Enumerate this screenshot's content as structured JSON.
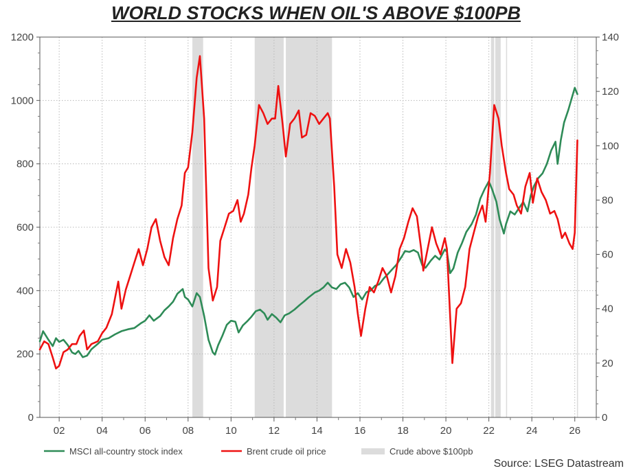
{
  "title": "WORLD STOCKS WHEN OIL'S ABOVE $100PB",
  "source": "Source: LSEG Datastream",
  "chart_data": {
    "type": "line",
    "x_range": [
      2001.1,
      2027.0
    ],
    "x_ticks": [
      2002,
      2004,
      2006,
      2008,
      2010,
      2012,
      2014,
      2016,
      2018,
      2020,
      2022,
      2024,
      2026
    ],
    "x_tick_labels": [
      "02",
      "04",
      "06",
      "08",
      "10",
      "12",
      "14",
      "16",
      "18",
      "20",
      "22",
      "24",
      "26"
    ],
    "y_left": {
      "range": [
        0,
        1200
      ],
      "ticks": [
        0,
        200,
        400,
        600,
        800,
        1000,
        1200
      ],
      "labels": [
        "0",
        "200",
        "400",
        "600",
        "800",
        "1000",
        "1200"
      ]
    },
    "y_right": {
      "range": [
        0,
        140
      ],
      "ticks": [
        0,
        20,
        40,
        60,
        80,
        100,
        120,
        140
      ],
      "labels": [
        "0",
        "20",
        "40",
        "60",
        "80",
        "100",
        "120",
        "140"
      ]
    },
    "grid": true,
    "legend_position": "bottom",
    "shaded_periods": {
      "name": "Crude above $100pb",
      "color": "#dcdcdc",
      "ranges": [
        [
          2008.2,
          2008.7
        ],
        [
          2011.1,
          2012.45
        ],
        [
          2012.55,
          2014.7
        ],
        [
          2022.1,
          2022.25
        ],
        [
          2022.3,
          2022.55
        ],
        [
          2022.8,
          2022.85
        ],
        [
          2026.1,
          2026.15
        ]
      ]
    },
    "series": [
      {
        "name": "MSCI all-country stock index",
        "axis": "left",
        "color": "#2e8b57",
        "points": [
          [
            2001.1,
            240
          ],
          [
            2001.25,
            272
          ],
          [
            2001.5,
            245
          ],
          [
            2001.7,
            225
          ],
          [
            2001.85,
            250
          ],
          [
            2002.0,
            238
          ],
          [
            2002.2,
            245
          ],
          [
            2002.4,
            228
          ],
          [
            2002.6,
            205
          ],
          [
            2002.75,
            200
          ],
          [
            2002.9,
            210
          ],
          [
            2003.1,
            190
          ],
          [
            2003.3,
            195
          ],
          [
            2003.5,
            215
          ],
          [
            2003.8,
            232
          ],
          [
            2004.0,
            245
          ],
          [
            2004.3,
            250
          ],
          [
            2004.6,
            262
          ],
          [
            2004.9,
            272
          ],
          [
            2005.2,
            278
          ],
          [
            2005.5,
            282
          ],
          [
            2005.8,
            297
          ],
          [
            2006.0,
            305
          ],
          [
            2006.2,
            322
          ],
          [
            2006.4,
            305
          ],
          [
            2006.7,
            320
          ],
          [
            2006.9,
            338
          ],
          [
            2007.1,
            350
          ],
          [
            2007.3,
            365
          ],
          [
            2007.5,
            390
          ],
          [
            2007.75,
            405
          ],
          [
            2007.85,
            380
          ],
          [
            2008.0,
            372
          ],
          [
            2008.2,
            350
          ],
          [
            2008.4,
            392
          ],
          [
            2008.55,
            380
          ],
          [
            2008.75,
            320
          ],
          [
            2008.95,
            245
          ],
          [
            2009.15,
            205
          ],
          [
            2009.25,
            198
          ],
          [
            2009.4,
            228
          ],
          [
            2009.6,
            258
          ],
          [
            2009.8,
            292
          ],
          [
            2010.0,
            305
          ],
          [
            2010.2,
            302
          ],
          [
            2010.35,
            268
          ],
          [
            2010.55,
            290
          ],
          [
            2010.75,
            303
          ],
          [
            2010.95,
            318
          ],
          [
            2011.15,
            335
          ],
          [
            2011.35,
            340
          ],
          [
            2011.55,
            328
          ],
          [
            2011.7,
            308
          ],
          [
            2011.9,
            326
          ],
          [
            2012.1,
            315
          ],
          [
            2012.3,
            300
          ],
          [
            2012.5,
            322
          ],
          [
            2012.7,
            328
          ],
          [
            2012.95,
            340
          ],
          [
            2013.2,
            355
          ],
          [
            2013.4,
            366
          ],
          [
            2013.6,
            378
          ],
          [
            2013.9,
            394
          ],
          [
            2014.1,
            400
          ],
          [
            2014.3,
            410
          ],
          [
            2014.5,
            425
          ],
          [
            2014.7,
            410
          ],
          [
            2014.9,
            405
          ],
          [
            2015.1,
            420
          ],
          [
            2015.3,
            425
          ],
          [
            2015.5,
            410
          ],
          [
            2015.7,
            380
          ],
          [
            2015.9,
            392
          ],
          [
            2016.1,
            372
          ],
          [
            2016.3,
            395
          ],
          [
            2016.5,
            400
          ],
          [
            2016.7,
            415
          ],
          [
            2016.9,
            420
          ],
          [
            2017.1,
            438
          ],
          [
            2017.3,
            452
          ],
          [
            2017.5,
            467
          ],
          [
            2017.7,
            482
          ],
          [
            2017.95,
            508
          ],
          [
            2018.1,
            525
          ],
          [
            2018.3,
            522
          ],
          [
            2018.5,
            528
          ],
          [
            2018.7,
            520
          ],
          [
            2018.9,
            480
          ],
          [
            2019.05,
            472
          ],
          [
            2019.3,
            495
          ],
          [
            2019.5,
            510
          ],
          [
            2019.7,
            498
          ],
          [
            2019.95,
            530
          ],
          [
            2020.05,
            522
          ],
          [
            2020.2,
            455
          ],
          [
            2020.35,
            470
          ],
          [
            2020.55,
            520
          ],
          [
            2020.75,
            550
          ],
          [
            2020.95,
            585
          ],
          [
            2021.2,
            610
          ],
          [
            2021.4,
            640
          ],
          [
            2021.6,
            690
          ],
          [
            2021.8,
            720
          ],
          [
            2022.0,
            745
          ],
          [
            2022.15,
            720
          ],
          [
            2022.35,
            680
          ],
          [
            2022.5,
            625
          ],
          [
            2022.7,
            580
          ],
          [
            2022.8,
            610
          ],
          [
            2023.0,
            650
          ],
          [
            2023.2,
            640
          ],
          [
            2023.45,
            665
          ],
          [
            2023.6,
            680
          ],
          [
            2023.8,
            650
          ],
          [
            2023.95,
            700
          ],
          [
            2024.1,
            730
          ],
          [
            2024.3,
            755
          ],
          [
            2024.5,
            770
          ],
          [
            2024.7,
            800
          ],
          [
            2024.9,
            842
          ],
          [
            2025.1,
            870
          ],
          [
            2025.2,
            800
          ],
          [
            2025.35,
            875
          ],
          [
            2025.5,
            930
          ],
          [
            2025.7,
            970
          ],
          [
            2025.85,
            1005
          ],
          [
            2026.0,
            1040
          ],
          [
            2026.12,
            1020
          ]
        ]
      },
      {
        "name": "Brent crude oil price",
        "axis": "right",
        "color": "#ee1111",
        "points": [
          [
            2001.1,
            25
          ],
          [
            2001.3,
            28
          ],
          [
            2001.5,
            27
          ],
          [
            2001.7,
            22
          ],
          [
            2001.85,
            18
          ],
          [
            2002.0,
            19
          ],
          [
            2002.2,
            24
          ],
          [
            2002.4,
            25
          ],
          [
            2002.6,
            27
          ],
          [
            2002.8,
            27
          ],
          [
            2002.95,
            30
          ],
          [
            2003.15,
            32
          ],
          [
            2003.3,
            25
          ],
          [
            2003.5,
            27
          ],
          [
            2003.8,
            28
          ],
          [
            2004.0,
            31
          ],
          [
            2004.2,
            33
          ],
          [
            2004.45,
            38
          ],
          [
            2004.6,
            44
          ],
          [
            2004.75,
            50
          ],
          [
            2004.9,
            40
          ],
          [
            2005.1,
            47
          ],
          [
            2005.3,
            52
          ],
          [
            2005.5,
            57
          ],
          [
            2005.7,
            62
          ],
          [
            2005.9,
            56
          ],
          [
            2006.1,
            62
          ],
          [
            2006.3,
            70
          ],
          [
            2006.5,
            73
          ],
          [
            2006.7,
            65
          ],
          [
            2006.9,
            59
          ],
          [
            2007.1,
            56
          ],
          [
            2007.3,
            66
          ],
          [
            2007.5,
            73
          ],
          [
            2007.7,
            78
          ],
          [
            2007.85,
            90
          ],
          [
            2008.0,
            92
          ],
          [
            2008.2,
            105
          ],
          [
            2008.4,
            125
          ],
          [
            2008.55,
            133
          ],
          [
            2008.75,
            110
          ],
          [
            2008.95,
            55
          ],
          [
            2009.15,
            43
          ],
          [
            2009.35,
            48
          ],
          [
            2009.5,
            65
          ],
          [
            2009.7,
            70
          ],
          [
            2009.9,
            75
          ],
          [
            2010.1,
            76
          ],
          [
            2010.3,
            80
          ],
          [
            2010.45,
            72
          ],
          [
            2010.6,
            75
          ],
          [
            2010.8,
            82
          ],
          [
            2010.95,
            92
          ],
          [
            2011.1,
            100
          ],
          [
            2011.3,
            115
          ],
          [
            2011.5,
            112
          ],
          [
            2011.7,
            108
          ],
          [
            2011.9,
            110
          ],
          [
            2012.05,
            110
          ],
          [
            2012.2,
            122
          ],
          [
            2012.4,
            108
          ],
          [
            2012.55,
            96
          ],
          [
            2012.75,
            108
          ],
          [
            2012.95,
            110
          ],
          [
            2013.15,
            113
          ],
          [
            2013.3,
            103
          ],
          [
            2013.5,
            104
          ],
          [
            2013.7,
            112
          ],
          [
            2013.9,
            111
          ],
          [
            2014.1,
            108
          ],
          [
            2014.3,
            110
          ],
          [
            2014.5,
            112
          ],
          [
            2014.6,
            110
          ],
          [
            2014.8,
            85
          ],
          [
            2014.95,
            60
          ],
          [
            2015.15,
            55
          ],
          [
            2015.35,
            62
          ],
          [
            2015.55,
            57
          ],
          [
            2015.75,
            48
          ],
          [
            2015.9,
            38
          ],
          [
            2016.05,
            30
          ],
          [
            2016.25,
            40
          ],
          [
            2016.45,
            48
          ],
          [
            2016.65,
            46
          ],
          [
            2016.85,
            50
          ],
          [
            2017.05,
            55
          ],
          [
            2017.25,
            52
          ],
          [
            2017.45,
            46
          ],
          [
            2017.65,
            52
          ],
          [
            2017.85,
            62
          ],
          [
            2018.05,
            66
          ],
          [
            2018.25,
            72
          ],
          [
            2018.45,
            77
          ],
          [
            2018.65,
            74
          ],
          [
            2018.85,
            62
          ],
          [
            2018.95,
            54
          ],
          [
            2019.15,
            62
          ],
          [
            2019.35,
            70
          ],
          [
            2019.55,
            64
          ],
          [
            2019.75,
            60
          ],
          [
            2019.95,
            66
          ],
          [
            2020.05,
            62
          ],
          [
            2020.15,
            45
          ],
          [
            2020.3,
            20
          ],
          [
            2020.5,
            40
          ],
          [
            2020.7,
            42
          ],
          [
            2020.9,
            48
          ],
          [
            2021.1,
            62
          ],
          [
            2021.3,
            68
          ],
          [
            2021.5,
            74
          ],
          [
            2021.7,
            78
          ],
          [
            2021.85,
            72
          ],
          [
            2022.05,
            90
          ],
          [
            2022.25,
            115
          ],
          [
            2022.45,
            110
          ],
          [
            2022.6,
            100
          ],
          [
            2022.8,
            90
          ],
          [
            2022.95,
            84
          ],
          [
            2023.15,
            82
          ],
          [
            2023.3,
            78
          ],
          [
            2023.5,
            75
          ],
          [
            2023.7,
            85
          ],
          [
            2023.9,
            90
          ],
          [
            2024.05,
            79
          ],
          [
            2024.25,
            88
          ],
          [
            2024.45,
            83
          ],
          [
            2024.65,
            80
          ],
          [
            2024.85,
            75
          ],
          [
            2025.05,
            76
          ],
          [
            2025.2,
            73
          ],
          [
            2025.4,
            66
          ],
          [
            2025.55,
            68
          ],
          [
            2025.75,
            64
          ],
          [
            2025.9,
            62
          ],
          [
            2026.0,
            68
          ],
          [
            2026.12,
            102
          ]
        ]
      }
    ]
  }
}
